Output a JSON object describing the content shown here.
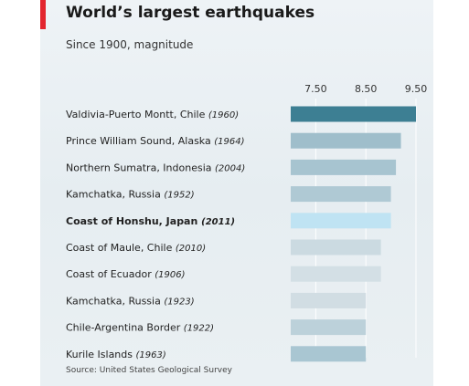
{
  "chart_data": {
    "type": "bar",
    "orientation": "horizontal",
    "title": "World’s largest earthquakes",
    "subtitle": "Since 1900, magnitude",
    "source": "Source: United States Geological Survey",
    "xlim": [
      7.0,
      9.5
    ],
    "ticks": [
      {
        "value": 7.5,
        "label": "7.50"
      },
      {
        "value": 8.5,
        "label": "8.50"
      },
      {
        "value": 9.5,
        "label": "9.50"
      }
    ],
    "categories": [
      {
        "place": "Valdivia-Puerto Montt, Chile",
        "year": "(1960)",
        "value": 9.5,
        "color": "#3d7f93"
      },
      {
        "place": "Prince William Sound, Alaska",
        "year": "(1964)",
        "value": 9.2,
        "color": "#9fbecb"
      },
      {
        "place": "Northern Sumatra, Indonesia",
        "year": "(2004)",
        "value": 9.1,
        "color": "#a7c4d0"
      },
      {
        "place": "Kamchatka, Russia",
        "year": "(1952)",
        "value": 9.0,
        "color": "#afc9d4"
      },
      {
        "place": "Coast of Honshu, Japan",
        "year": "(2011)",
        "value": 9.0,
        "color": "#bfe3f3",
        "highlight": true
      },
      {
        "place": "Coast of Maule, Chile",
        "year": "(2010)",
        "value": 8.8,
        "color": "#cbdae1"
      },
      {
        "place": "Coast of Ecuador",
        "year": "(1906)",
        "value": 8.8,
        "color": "#d3dfe5"
      },
      {
        "place": "Kamchatka, Russia",
        "year": "(1923)",
        "value": 8.5,
        "color": "#d1dde3"
      },
      {
        "place": "Chile-Argentina Border",
        "year": "(1922)",
        "value": 8.5,
        "color": "#bcd1da"
      },
      {
        "place": "Kurile Islands",
        "year": "(1963)",
        "value": 8.5,
        "color": "#a9c6d2"
      }
    ]
  }
}
